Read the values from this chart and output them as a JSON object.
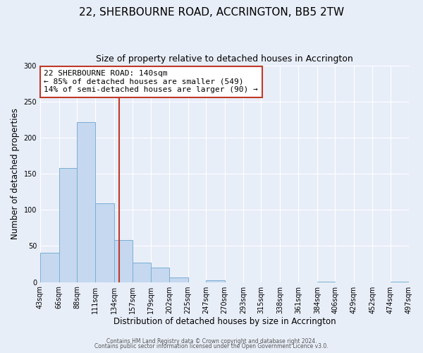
{
  "title": "22, SHERBOURNE ROAD, ACCRINGTON, BB5 2TW",
  "subtitle": "Size of property relative to detached houses in Accrington",
  "xlabel": "Distribution of detached houses by size in Accrington",
  "ylabel": "Number of detached properties",
  "bins": [
    43,
    66,
    88,
    111,
    134,
    157,
    179,
    202,
    225,
    247,
    270,
    293,
    315,
    338,
    361,
    384,
    406,
    429,
    452,
    474,
    497
  ],
  "counts": [
    41,
    158,
    222,
    109,
    58,
    27,
    20,
    6,
    0,
    3,
    0,
    0,
    0,
    0,
    0,
    1,
    0,
    0,
    0,
    1
  ],
  "bar_color": "#c5d8f0",
  "bar_edge_color": "#7aafd4",
  "vline_x": 140,
  "vline_color": "#c0392b",
  "annotation_title": "22 SHERBOURNE ROAD: 140sqm",
  "annotation_line2": "← 85% of detached houses are smaller (549)",
  "annotation_line3": "14% of semi-detached houses are larger (90) →",
  "annotation_box_color": "#c0392b",
  "ylim": [
    0,
    300
  ],
  "yticks": [
    0,
    50,
    100,
    150,
    200,
    250,
    300
  ],
  "footer1": "Contains HM Land Registry data © Crown copyright and database right 2024.",
  "footer2": "Contains public sector information licensed under the Open Government Licence v3.0.",
  "bg_color": "#e8eef8",
  "plot_bg_color": "#e8eef8",
  "title_fontsize": 11,
  "subtitle_fontsize": 9,
  "axis_label_fontsize": 8.5,
  "tick_label_fontsize": 7,
  "annotation_fontsize": 8
}
